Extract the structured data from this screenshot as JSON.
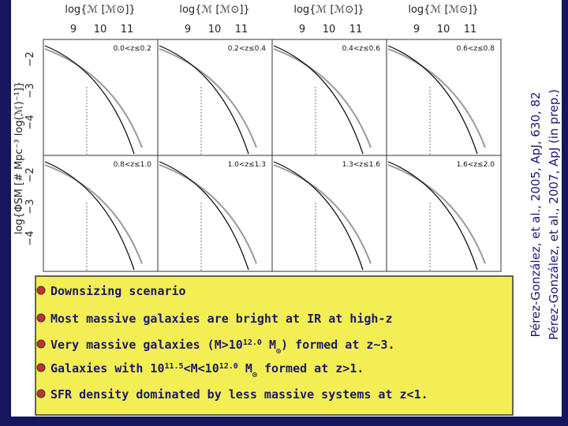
{
  "figure": {
    "x_axis_label": "log{ℳ [ℳ⊙]}",
    "x_ticks": [
      "9",
      "10",
      "11"
    ],
    "y_axis_label": "log{ΦSM [# Mpc⁻³ log(ℳ)⁻¹]}",
    "y_ticks": [
      "−2",
      "−3",
      "−4"
    ],
    "panels": [
      "0.0<z≤0.2",
      "0.2<z≤0.4",
      "0.4<z≤0.6",
      "0.6<z≤0.8",
      "0.8<z≤1.0",
      "1.0<z≤1.3",
      "1.3<z≤1.6",
      "1.6<z≤2.0"
    ]
  },
  "bullets": [
    [
      {
        "t": "Downsizing scenario"
      }
    ],
    [
      {
        "t": "Most massive galaxies are bright at IR at high-z"
      }
    ],
    [
      {
        "t": "Very massive galaxies (M>10"
      },
      {
        "sup": "12.0"
      },
      {
        "t": " M"
      },
      {
        "sub": "⊙"
      },
      {
        "t": ") formed at z~3."
      }
    ],
    [
      {
        "t": "Galaxies with 10"
      },
      {
        "sup": "11.5"
      },
      {
        "t": "<M<10"
      },
      {
        "sup": "12.0"
      },
      {
        "t": " M"
      },
      {
        "sub": "⊙"
      },
      {
        "t": " formed at z>1."
      }
    ],
    [
      {
        "t": "SFR density dominated by less massive systems at z<1."
      }
    ]
  ],
  "citations": [
    "Pérez-González, et al., 2005, ApJ, 630, 82",
    "Pérez-González, et al., 2007, ApJ (in prep.)"
  ]
}
